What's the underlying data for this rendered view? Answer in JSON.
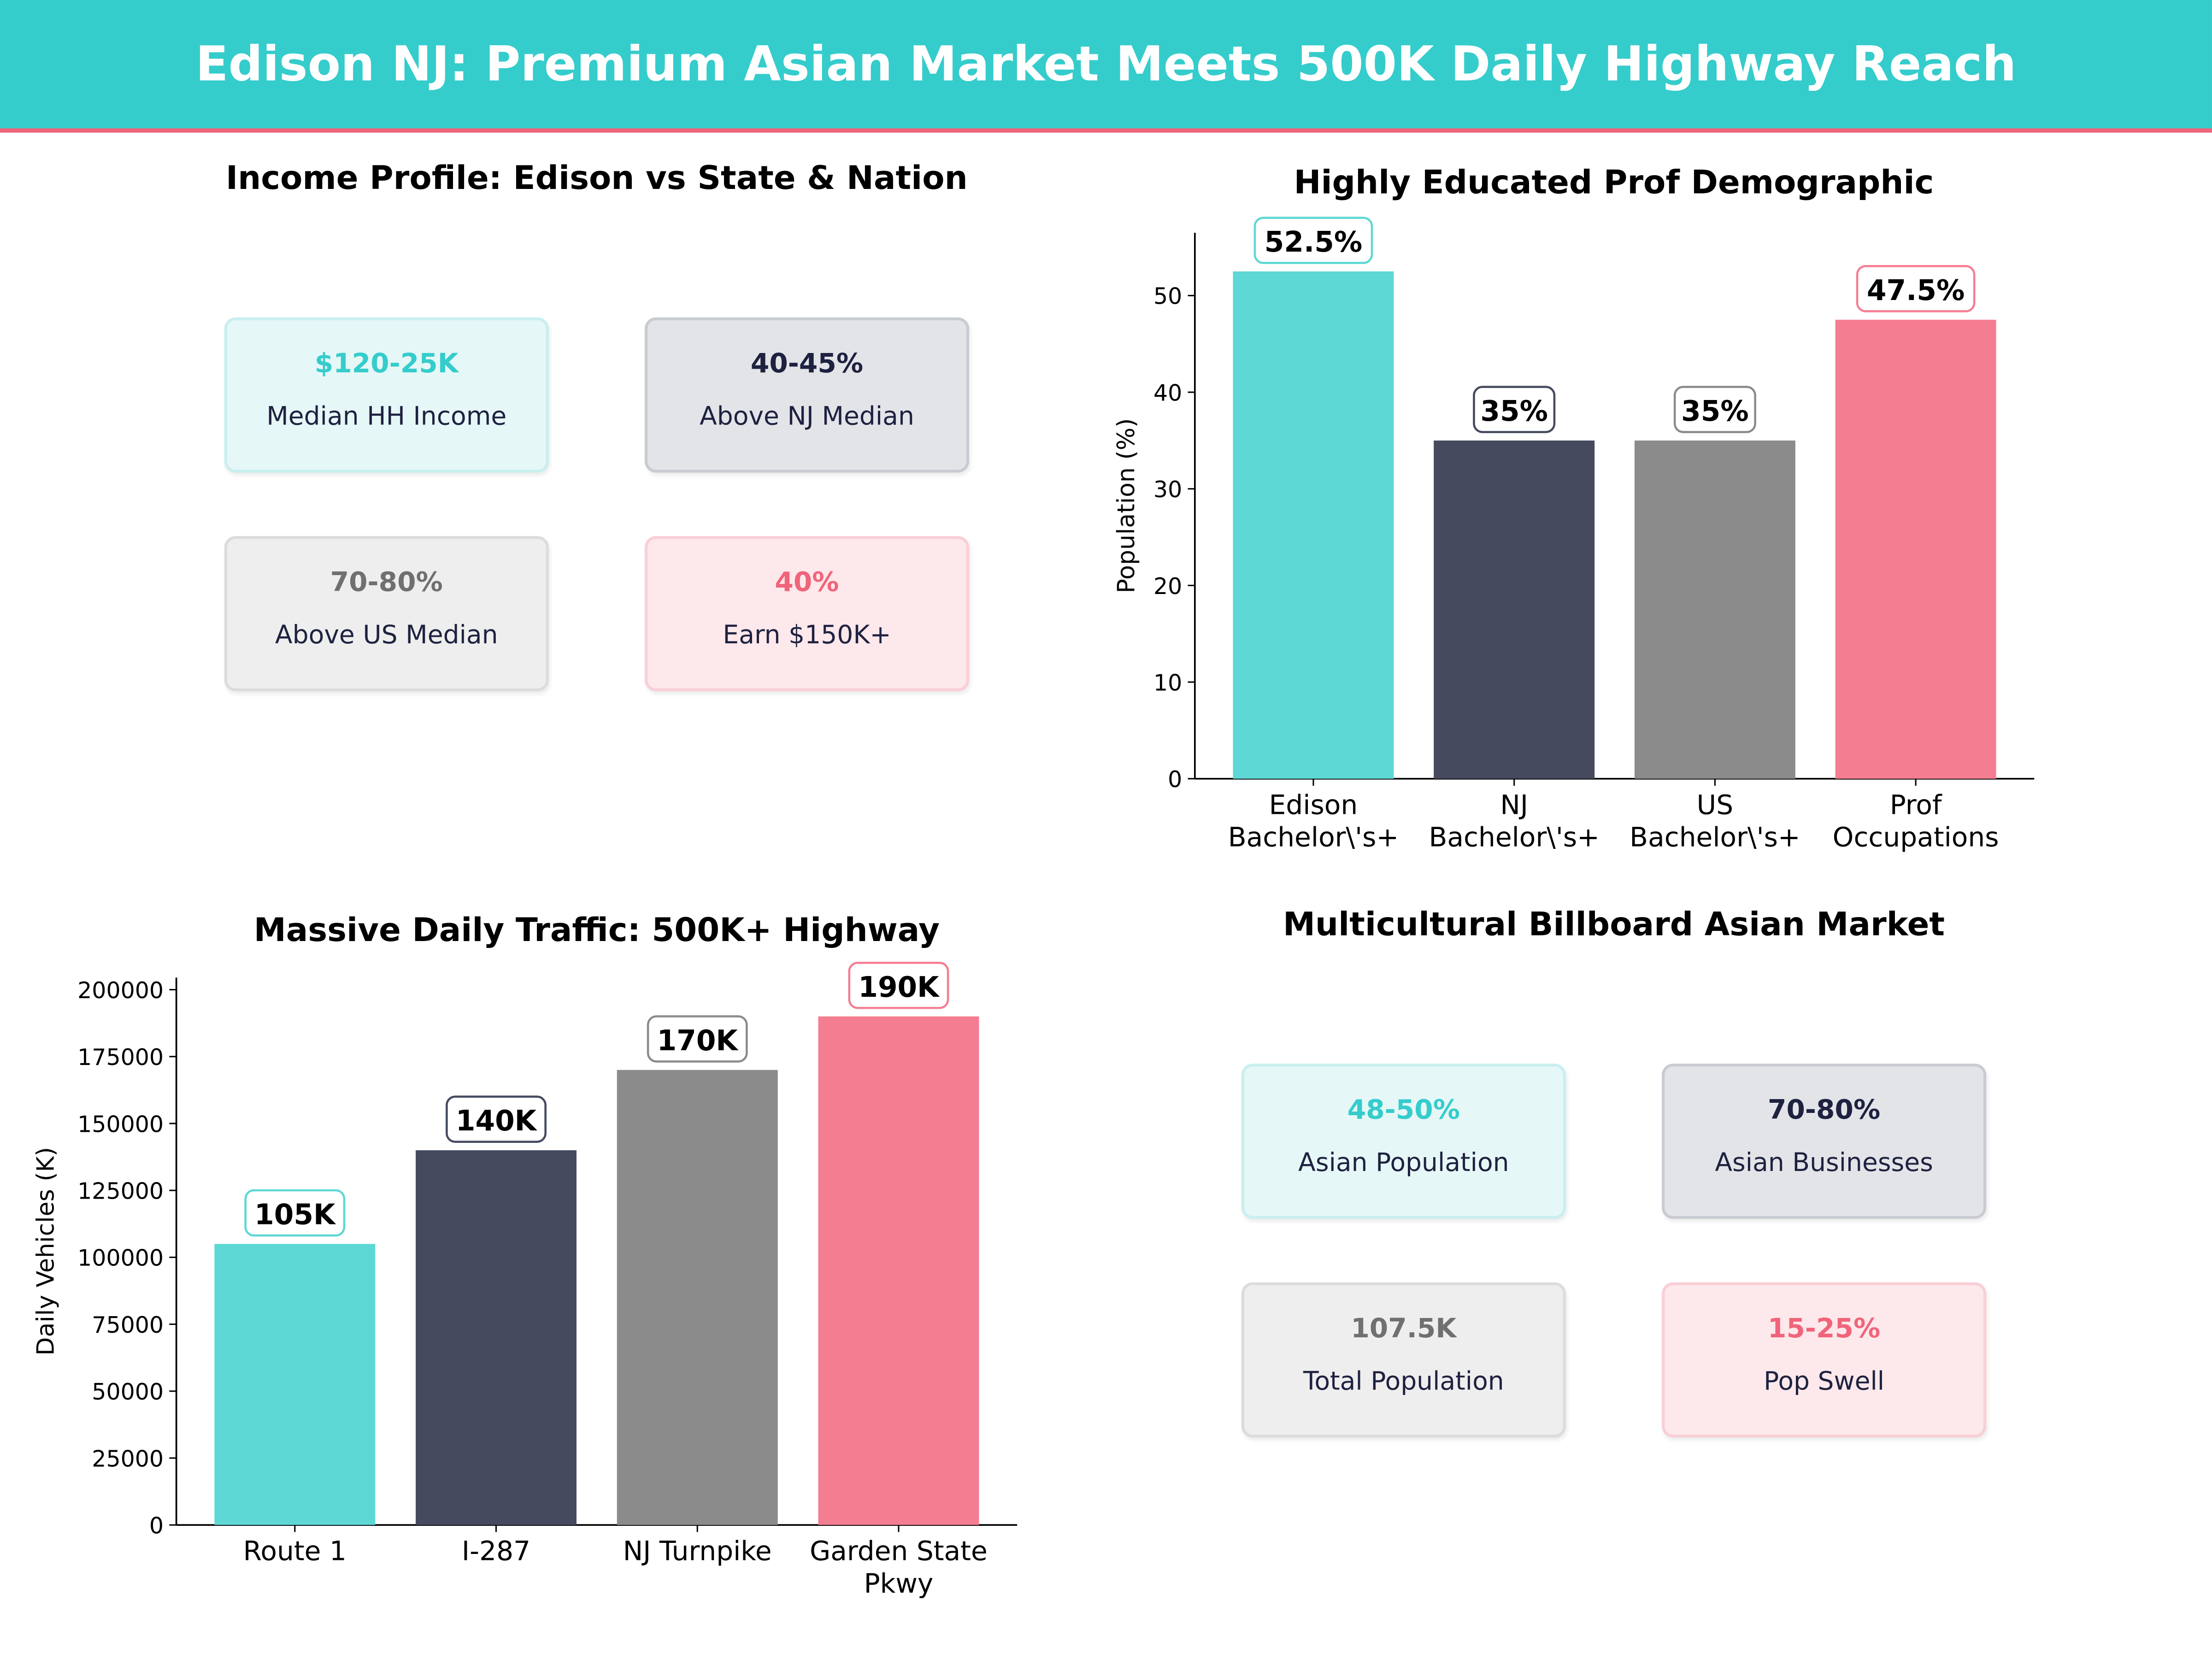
{
  "title": "Edison NJ: Premium Asian Market Meets 500K Daily Highway Reach",
  "colors": {
    "teal": "#35CCCC",
    "pink": "#F0647A",
    "bars": [
      "#5DD8D5",
      "#454A5F",
      "#8B8B8B",
      "#F57D91"
    ]
  },
  "income": {
    "title": "Income Profile: Edison vs State & Nation",
    "cards": [
      {
        "value": "$120-25K",
        "label": "Median HH Income"
      },
      {
        "value": "40-45%",
        "label": "Above NJ Median"
      },
      {
        "value": "70-80%",
        "label": "Above US Median"
      },
      {
        "value": "40%",
        "label": "Earn $150K+"
      }
    ]
  },
  "market": {
    "title": "Multicultural Billboard Asian Market",
    "cards": [
      {
        "value": "48-50%",
        "label": "Asian Population"
      },
      {
        "value": "70-80%",
        "label": "Asian Businesses"
      },
      {
        "value": "107.5K",
        "label": "Total Population"
      },
      {
        "value": "15-25%",
        "label": "Pop Swell"
      }
    ]
  },
  "chart_data": [
    {
      "type": "bar",
      "title": "Highly Educated Prof Demographic",
      "xlabel": "",
      "ylabel": "Population (%)",
      "categories": [
        [
          "Edison",
          "Bachelor\\'s+"
        ],
        [
          "NJ",
          "Bachelor\\'s+"
        ],
        [
          "US",
          "Bachelor\\'s+"
        ],
        [
          "Prof",
          "Occupations"
        ]
      ],
      "values": [
        52.5,
        35,
        35,
        47.5
      ],
      "data_labels": [
        "52.5%",
        "35%",
        "35%",
        "47.5%"
      ],
      "ylim": [
        0,
        56.5
      ],
      "yticks": [
        0,
        10,
        20,
        30,
        40,
        50
      ],
      "grid": false
    },
    {
      "type": "bar",
      "title": "Massive Daily Traffic: 500K+ Highway",
      "xlabel": "",
      "ylabel": "Daily Vehicles (K)",
      "categories": [
        [
          "Route 1"
        ],
        [
          "I-287"
        ],
        [
          "NJ Turnpike"
        ],
        [
          "Garden State",
          "Pkwy"
        ]
      ],
      "values": [
        105000,
        140000,
        170000,
        190000
      ],
      "data_labels": [
        "105K",
        "140K",
        "170K",
        "190K"
      ],
      "ylim": [
        0,
        204500
      ],
      "yticks": [
        0,
        25000,
        50000,
        75000,
        100000,
        125000,
        150000,
        175000,
        200000
      ],
      "grid": false
    }
  ]
}
